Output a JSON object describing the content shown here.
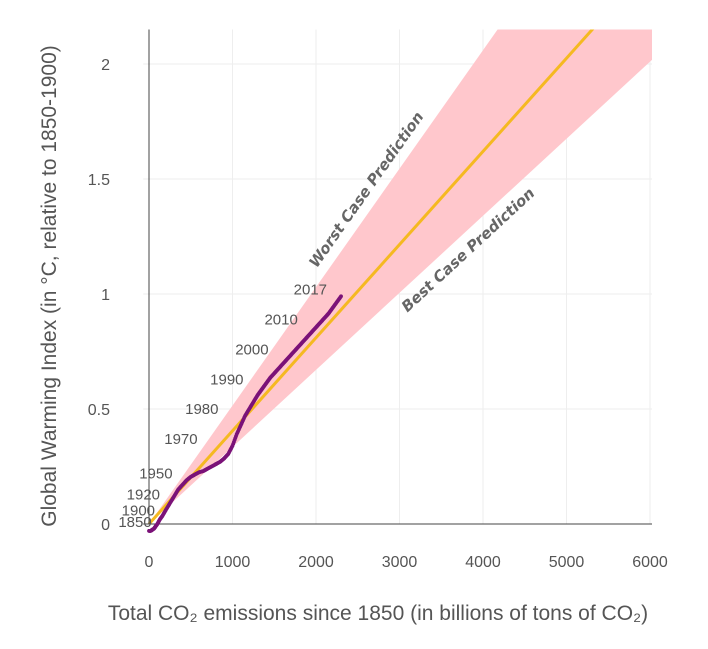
{
  "chart_data": {
    "type": "line",
    "xlabel": "Total CO₂ emissions since 1850 (in billions of tons of CO₂)",
    "ylabel": "Global Warming Index (in °C, relative to 1850-1900)",
    "xlim": [
      -70,
      6100
    ],
    "ylim": [
      -0.04,
      2.15
    ],
    "x_ticks": [
      0,
      1000,
      2000,
      3000,
      4000,
      5000,
      6000
    ],
    "y_ticks": [
      0,
      0.5,
      1,
      1.5,
      2
    ],
    "x_tick_labels": [
      "0",
      "1000",
      "2000",
      "3000",
      "4000",
      "5000",
      "6000"
    ],
    "y_tick_labels": [
      "0",
      "0.5",
      "1",
      "1.5",
      "2"
    ],
    "grid": true,
    "prediction": {
      "central_slope": 0.000405,
      "upper_slope": 0.000515,
      "lower_slope": 0.000335,
      "central_color": "#f5b921",
      "band_color": "#ffc7cc",
      "worst_label": "Worst Case Prediction",
      "best_label": "Best Case Prediction"
    },
    "series": [
      {
        "color": "#7b1278",
        "x": [
          0,
          20,
          40,
          60,
          80,
          100,
          130,
          160,
          200,
          250,
          300,
          350,
          400,
          450,
          500,
          550,
          600,
          650,
          700,
          750,
          800,
          850,
          900,
          950,
          1000,
          1050,
          1100,
          1150,
          1200,
          1250,
          1300,
          1350,
          1400,
          1450,
          1500,
          1550,
          1600,
          1650,
          1700,
          1750,
          1800,
          1850,
          1900,
          1950,
          2000,
          2050,
          2100,
          2150,
          2200,
          2250,
          2300
        ],
        "y": [
          -0.03,
          -0.03,
          -0.025,
          -0.02,
          -0.01,
          0.0,
          0.02,
          0.035,
          0.06,
          0.09,
          0.12,
          0.15,
          0.17,
          0.19,
          0.205,
          0.215,
          0.225,
          0.23,
          0.24,
          0.25,
          0.26,
          0.27,
          0.285,
          0.305,
          0.34,
          0.39,
          0.43,
          0.47,
          0.5,
          0.53,
          0.56,
          0.585,
          0.61,
          0.635,
          0.655,
          0.675,
          0.695,
          0.715,
          0.735,
          0.755,
          0.775,
          0.795,
          0.815,
          0.835,
          0.855,
          0.875,
          0.895,
          0.915,
          0.94,
          0.965,
          0.99
        ]
      }
    ],
    "annotations": [
      {
        "label": "1850",
        "x": 0,
        "y": -0.03
      },
      {
        "label": "1900",
        "x": 40,
        "y": 0.02
      },
      {
        "label": "1920",
        "x": 100,
        "y": 0.09
      },
      {
        "label": "1950",
        "x": 250,
        "y": 0.18
      },
      {
        "label": "1970",
        "x": 550,
        "y": 0.33
      },
      {
        "label": "1980",
        "x": 800,
        "y": 0.46
      },
      {
        "label": "1990",
        "x": 1100,
        "y": 0.59
      },
      {
        "label": "2000",
        "x": 1400,
        "y": 0.72
      },
      {
        "label": "2010",
        "x": 1750,
        "y": 0.85
      },
      {
        "label": "2017",
        "x": 2100,
        "y": 0.98
      }
    ]
  }
}
